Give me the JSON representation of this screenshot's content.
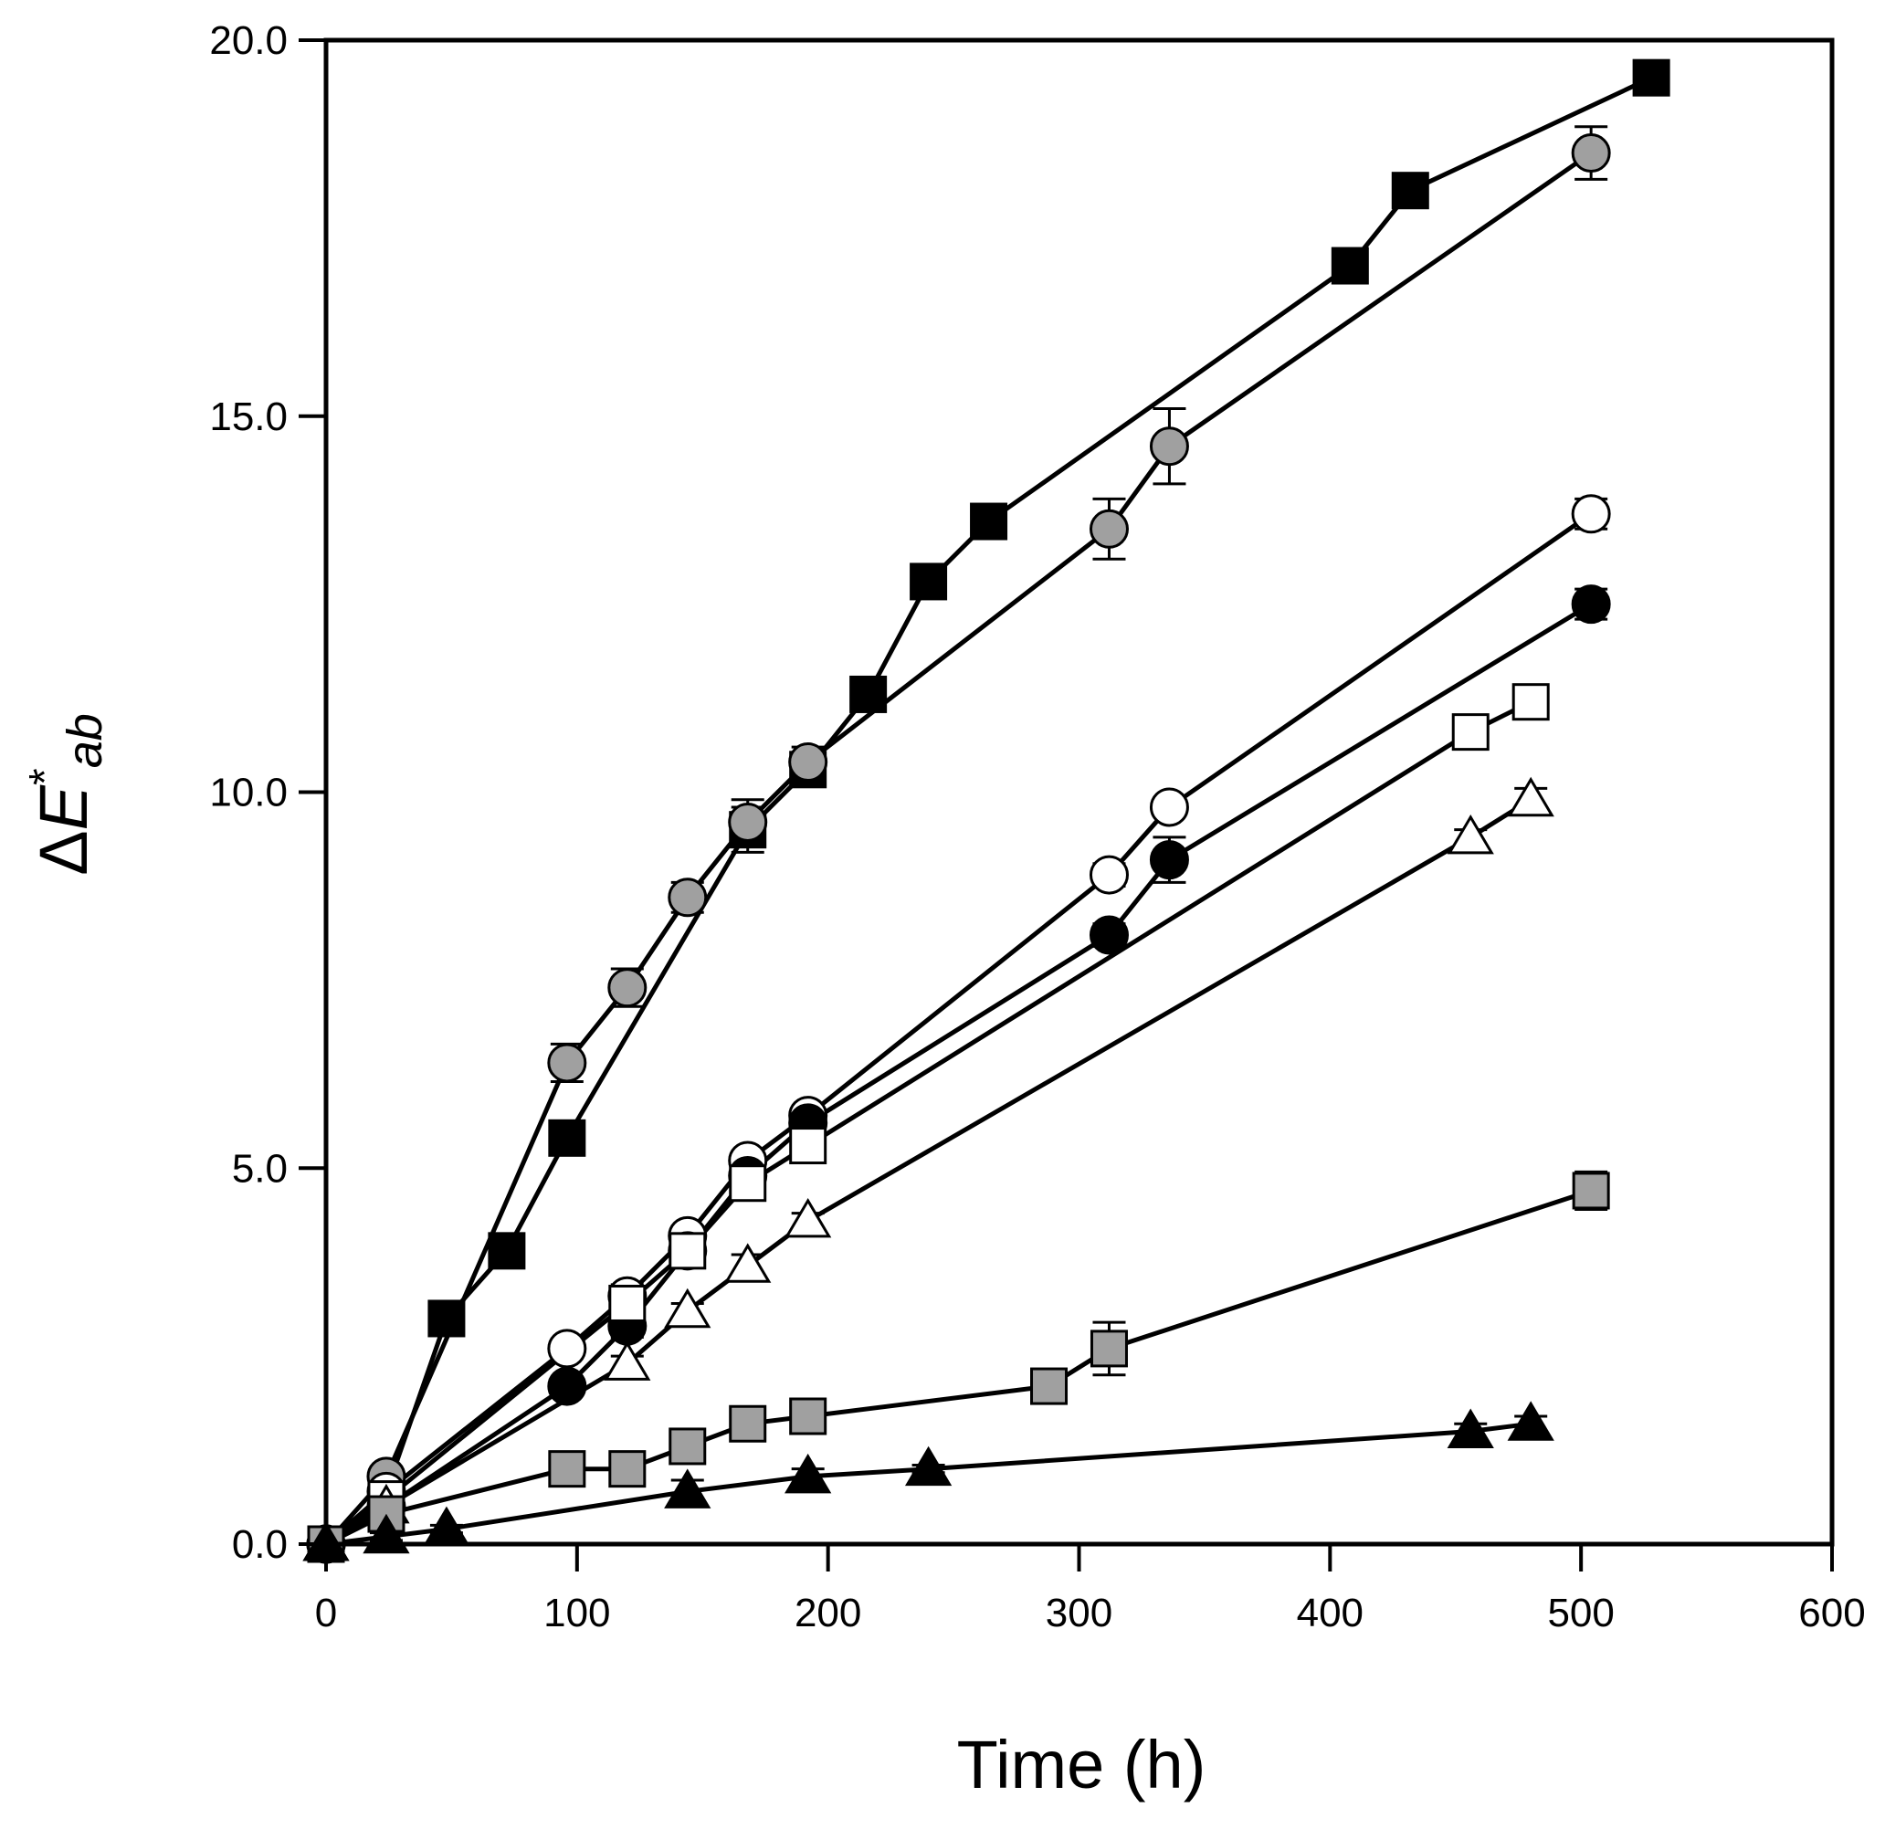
{
  "chart_data": {
    "type": "line",
    "title": "",
    "xlabel": "Time (h)",
    "ylabel": {
      "prefix": "Δ",
      "main": "E",
      "superscript": "*",
      "subscript": "ab"
    },
    "xlim": [
      0,
      600
    ],
    "ylim": [
      0,
      20
    ],
    "x_ticks": [
      0,
      100,
      200,
      300,
      400,
      500,
      600
    ],
    "x_tick_labels": [
      "0",
      "100",
      "200",
      "300",
      "400",
      "500",
      "600"
    ],
    "y_ticks": [
      0,
      5,
      10,
      15,
      20
    ],
    "y_tick_labels": [
      "0.0",
      "5.0",
      "10.0",
      "15.0",
      "20.0"
    ],
    "grid": false,
    "legend": "none",
    "series": [
      {
        "name": "black squares",
        "marker": "square",
        "fill": "#000000",
        "x": [
          0,
          24,
          48,
          72,
          96,
          168,
          192,
          216,
          240,
          264,
          408,
          432,
          528
        ],
        "y": [
          0,
          0.7,
          3.0,
          3.9,
          5.4,
          9.5,
          10.3,
          11.3,
          12.8,
          13.6,
          17.0,
          18.0,
          19.5
        ],
        "err": [
          0,
          0.1,
          0.2,
          0.15,
          0.2,
          0.3,
          0.2,
          0.15,
          0.15,
          0.15,
          0.15,
          0.2,
          0.15
        ]
      },
      {
        "name": "grey circles",
        "marker": "circle",
        "fill": "#a0a0a0",
        "x": [
          0,
          24,
          96,
          120,
          144,
          168,
          192,
          312,
          336,
          504
        ],
        "y": [
          0,
          0.9,
          6.4,
          7.4,
          8.6,
          9.6,
          10.4,
          13.5,
          14.6,
          18.5
        ],
        "err": [
          0,
          0.1,
          0.25,
          0.25,
          0.2,
          0.3,
          0.2,
          0.4,
          0.5,
          0.35
        ]
      },
      {
        "name": "open circles",
        "marker": "circle",
        "fill": "#ffffff",
        "x": [
          0,
          24,
          96,
          120,
          144,
          168,
          192,
          312,
          336,
          504
        ],
        "y": [
          0,
          0.7,
          2.6,
          3.3,
          4.1,
          5.1,
          5.7,
          8.9,
          9.8,
          13.7
        ],
        "err": [
          0,
          0.1,
          0.1,
          0.15,
          0.1,
          0.1,
          0.1,
          0.15,
          0.1,
          0.2
        ]
      },
      {
        "name": "black circles",
        "marker": "circle",
        "fill": "#000000",
        "x": [
          0,
          24,
          96,
          120,
          144,
          168,
          192,
          312,
          336,
          504
        ],
        "y": [
          0,
          0.5,
          2.1,
          2.9,
          3.9,
          4.9,
          5.6,
          8.1,
          9.1,
          12.5
        ],
        "err": [
          0,
          0.1,
          0.1,
          0.15,
          0.15,
          0.1,
          0.1,
          0.15,
          0.3,
          0.2
        ]
      },
      {
        "name": "open squares",
        "marker": "square",
        "fill": "#ffffff",
        "x": [
          0,
          24,
          120,
          144,
          168,
          192,
          456,
          480
        ],
        "y": [
          0,
          0.6,
          3.2,
          3.9,
          4.8,
          5.3,
          10.8,
          11.2
        ],
        "err": [
          0,
          0.1,
          0.15,
          0.15,
          0.15,
          0.1,
          0.15,
          0.2
        ]
      },
      {
        "name": "open triangles",
        "marker": "triangle",
        "fill": "#ffffff",
        "x": [
          0,
          24,
          120,
          144,
          168,
          192,
          456,
          480
        ],
        "y": [
          0,
          0.5,
          2.4,
          3.1,
          3.7,
          4.3,
          9.4,
          9.9
        ],
        "err": [
          0,
          0.1,
          0.1,
          0.1,
          0.15,
          0.1,
          0.1,
          0.15
        ]
      },
      {
        "name": "grey squares",
        "marker": "square",
        "fill": "#a0a0a0",
        "x": [
          0,
          24,
          96,
          120,
          144,
          168,
          192,
          288,
          312,
          504
        ],
        "y": [
          0,
          0.4,
          1.0,
          1.0,
          1.3,
          1.6,
          1.7,
          2.1,
          2.6,
          4.7
        ],
        "err": [
          0,
          0.05,
          0.1,
          0.1,
          0.1,
          0.1,
          0.1,
          0.1,
          0.35,
          0.25
        ]
      },
      {
        "name": "black triangles",
        "marker": "triangle",
        "fill": "#000000",
        "x": [
          0,
          24,
          48,
          144,
          192,
          240,
          456,
          480
        ],
        "y": [
          0,
          0.1,
          0.2,
          0.7,
          0.9,
          1.0,
          1.5,
          1.6
        ],
        "err": [
          0,
          0.05,
          0.05,
          0.15,
          0.1,
          0.05,
          0.1,
          0.1
        ]
      }
    ]
  }
}
